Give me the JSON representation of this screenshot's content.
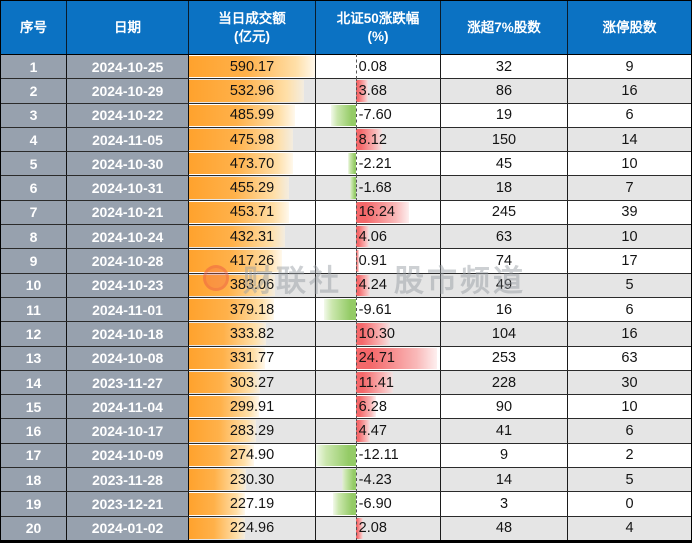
{
  "header": {
    "col_index": "序号",
    "col_date": "日期",
    "col_volume_line1": "当日成交额",
    "col_volume_line2": "(亿元)",
    "col_change_line1": "北证50涨跌幅",
    "col_change_line2": "(%)",
    "col_up7": "涨超7%股数",
    "col_limit": "涨停股数"
  },
  "watermark": {
    "brand": "财联社",
    "channel": "股市频道"
  },
  "colors": {
    "header_bg": "#0B72C3",
    "index_col_bg": "#97A1AE",
    "row_alt_bg": "#E5E5E5",
    "volume_bar": "#FFA22D",
    "positive_bar": "#F4686A",
    "negative_bar": "#94CB66"
  },
  "chart_data": {
    "type": "table",
    "title": "",
    "columns": [
      "序号",
      "日期",
      "当日成交额(亿元)",
      "北证50涨跌幅(%)",
      "涨超7%股数",
      "涨停股数"
    ],
    "rows": [
      {
        "index": "1",
        "date": "2024-10-25",
        "volume": "590.17",
        "change": "0.08",
        "up7": "32",
        "limit": "9"
      },
      {
        "index": "2",
        "date": "2024-10-29",
        "volume": "532.96",
        "change": "3.68",
        "up7": "86",
        "limit": "16"
      },
      {
        "index": "3",
        "date": "2024-10-22",
        "volume": "485.99",
        "change": "-7.60",
        "up7": "19",
        "limit": "6"
      },
      {
        "index": "4",
        "date": "2024-11-05",
        "volume": "475.98",
        "change": "8.12",
        "up7": "150",
        "limit": "14"
      },
      {
        "index": "5",
        "date": "2024-10-30",
        "volume": "473.70",
        "change": "-2.21",
        "up7": "45",
        "limit": "10"
      },
      {
        "index": "6",
        "date": "2024-10-31",
        "volume": "455.29",
        "change": "-1.68",
        "up7": "18",
        "limit": "7"
      },
      {
        "index": "7",
        "date": "2024-10-21",
        "volume": "453.71",
        "change": "16.24",
        "up7": "245",
        "limit": "39"
      },
      {
        "index": "8",
        "date": "2024-10-24",
        "volume": "432.31",
        "change": "4.06",
        "up7": "63",
        "limit": "10"
      },
      {
        "index": "9",
        "date": "2024-10-28",
        "volume": "417.26",
        "change": "0.91",
        "up7": "74",
        "limit": "17"
      },
      {
        "index": "10",
        "date": "2024-10-23",
        "volume": "383.06",
        "change": "4.24",
        "up7": "49",
        "limit": "5"
      },
      {
        "index": "11",
        "date": "2024-11-01",
        "volume": "379.18",
        "change": "-9.61",
        "up7": "16",
        "limit": "6"
      },
      {
        "index": "12",
        "date": "2024-10-18",
        "volume": "333.82",
        "change": "10.30",
        "up7": "104",
        "limit": "16"
      },
      {
        "index": "13",
        "date": "2024-10-08",
        "volume": "331.77",
        "change": "24.71",
        "up7": "253",
        "limit": "63"
      },
      {
        "index": "14",
        "date": "2023-11-27",
        "volume": "303.27",
        "change": "11.41",
        "up7": "228",
        "limit": "30"
      },
      {
        "index": "15",
        "date": "2024-11-04",
        "volume": "299.91",
        "change": "6.28",
        "up7": "90",
        "limit": "10"
      },
      {
        "index": "16",
        "date": "2024-10-17",
        "volume": "283.29",
        "change": "4.47",
        "up7": "41",
        "limit": "6"
      },
      {
        "index": "17",
        "date": "2024-10-09",
        "volume": "274.90",
        "change": "-12.11",
        "up7": "9",
        "limit": "2"
      },
      {
        "index": "18",
        "date": "2023-11-28",
        "volume": "230.30",
        "change": "-4.23",
        "up7": "14",
        "limit": "5"
      },
      {
        "index": "19",
        "date": "2023-12-21",
        "volume": "227.19",
        "change": "-6.90",
        "up7": "3",
        "limit": "0"
      },
      {
        "index": "20",
        "date": "2024-01-02",
        "volume": "224.96",
        "change": "2.08",
        "up7": "48",
        "limit": "4"
      }
    ],
    "databars": {
      "volume_max": 590.17,
      "volume_min_pct": 10,
      "change_axis_pct": 32,
      "change_pct_per_unit": 2.65,
      "change_max": 24.71,
      "change_min": -12.11
    }
  }
}
